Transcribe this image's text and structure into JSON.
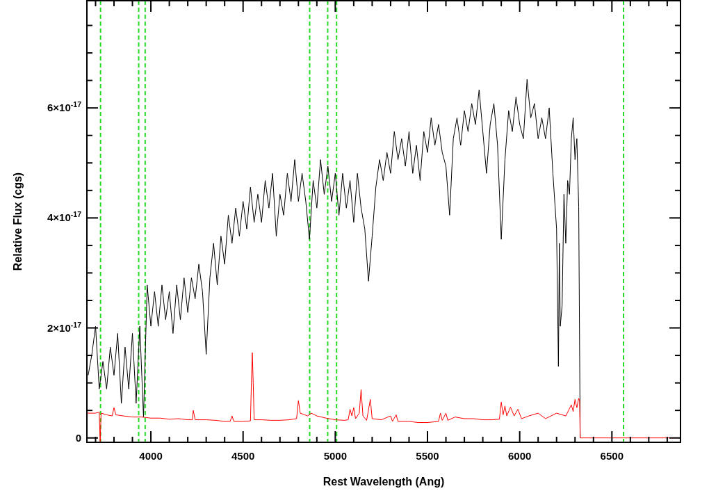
{
  "chart_data": {
    "type": "line",
    "xlabel": "Rest Wavelength (Ang)",
    "ylabel": "Relative Flux (cgs)",
    "xlim": [
      3653,
      6872
    ],
    "ylim": [
      -8e-19,
      7.95e-17
    ],
    "xticks": [
      {
        "value": 3700,
        "label": null
      },
      {
        "value": 3800,
        "label": null
      },
      {
        "value": 3900,
        "label": null
      },
      4000,
      {
        "value": 4100,
        "label": null
      },
      {
        "value": 4200,
        "label": null
      },
      {
        "value": 4300,
        "label": null
      },
      {
        "value": 4400,
        "label": null
      },
      4500,
      {
        "value": 4600,
        "label": null
      },
      {
        "value": 4700,
        "label": null
      },
      {
        "value": 4800,
        "label": null
      },
      {
        "value": 4900,
        "label": null
      },
      5000,
      {
        "value": 5100,
        "label": null
      },
      {
        "value": 5200,
        "label": null
      },
      {
        "value": 5300,
        "label": null
      },
      {
        "value": 5400,
        "label": null
      },
      5500,
      {
        "value": 5600,
        "label": null
      },
      {
        "value": 5700,
        "label": null
      },
      {
        "value": 5800,
        "label": null
      },
      {
        "value": 5900,
        "label": null
      },
      6000,
      {
        "value": 6100,
        "label": null
      },
      {
        "value": 6200,
        "label": null
      },
      {
        "value": 6300,
        "label": null
      },
      {
        "value": 6400,
        "label": null
      },
      6500,
      {
        "value": 6600,
        "label": null
      },
      {
        "value": 6700,
        "label": null
      },
      {
        "value": 6800,
        "label": null
      }
    ],
    "yticks": [
      0,
      {
        "value": 5e-18,
        "label": null
      },
      {
        "value": 1e-17,
        "label": null
      },
      {
        "value": 1.5e-17,
        "label": null
      },
      {
        "value": 2e-17,
        "label": "2×10$^{-17}$"
      },
      {
        "value": 2.5e-17,
        "label": null
      },
      {
        "value": 3e-17,
        "label": null
      },
      {
        "value": 3.5e-17,
        "label": null
      },
      {
        "value": 4e-17,
        "label": "4×10$^{-17}$"
      },
      {
        "value": 4.5e-17,
        "label": null
      },
      {
        "value": 5e-17,
        "label": null
      },
      {
        "value": 5.5e-17,
        "label": null
      },
      {
        "value": 6e-17,
        "label": "6×10$^{-17}$"
      },
      {
        "value": 6.5e-17,
        "label": null
      },
      {
        "value": 7e-17,
        "label": null
      },
      {
        "value": 7.5e-17,
        "label": null
      }
    ],
    "grid": false,
    "line_style": "solid",
    "ref_lines": [
      {
        "axis": "x",
        "value": 3727,
        "color": "#22dd22",
        "line_style": "dashed"
      },
      {
        "axis": "x",
        "value": 3934,
        "color": "#22dd22",
        "line_style": "dashed"
      },
      {
        "axis": "x",
        "value": 3969,
        "color": "#22dd22",
        "line_style": "dashed"
      },
      {
        "axis": "x",
        "value": 4861,
        "color": "#22dd22",
        "line_style": "dashed"
      },
      {
        "axis": "x",
        "value": 4959,
        "color": "#22dd22",
        "line_style": "dashed"
      },
      {
        "axis": "x",
        "value": 5007,
        "color": "#22dd22",
        "line_style": "dashed"
      },
      {
        "axis": "x",
        "value": 6563,
        "color": "#22dd22",
        "line_style": "dashed"
      }
    ],
    "series": [
      {
        "color": "#000000",
        "x": [
          3660,
          3680,
          3700,
          3720,
          3740,
          3760,
          3780,
          3800,
          3820,
          3840,
          3860,
          3880,
          3900,
          3920,
          3940,
          3960,
          3980,
          4000,
          4020,
          4040,
          4060,
          4080,
          4100,
          4120,
          4140,
          4160,
          4180,
          4200,
          4220,
          4240,
          4260,
          4280,
          4300,
          4320,
          4340,
          4360,
          4380,
          4400,
          4420,
          4440,
          4460,
          4480,
          4500,
          4520,
          4540,
          4560,
          4580,
          4600,
          4620,
          4640,
          4660,
          4680,
          4700,
          4720,
          4740,
          4760,
          4780,
          4800,
          4820,
          4840,
          4860,
          4880,
          4900,
          4920,
          4940,
          4960,
          4980,
          5000,
          5020,
          5040,
          5060,
          5080,
          5100,
          5120,
          5140,
          5160,
          5180,
          5200,
          5220,
          5240,
          5260,
          5280,
          5300,
          5320,
          5340,
          5360,
          5380,
          5400,
          5420,
          5440,
          5460,
          5480,
          5500,
          5520,
          5540,
          5560,
          5580,
          5600,
          5620,
          5640,
          5660,
          5680,
          5700,
          5720,
          5740,
          5760,
          5780,
          5800,
          5820,
          5840,
          5860,
          5880,
          5900,
          5920,
          5940,
          5960,
          5980,
          6000,
          6020,
          6040,
          6060,
          6080,
          6100,
          6120,
          6140,
          6160,
          6180,
          6200,
          6210,
          6215,
          6220,
          6230,
          6240,
          6250,
          6260,
          6270,
          6280,
          6290,
          6300,
          6310,
          6320,
          6328
        ],
        "values": [
          1.14e-17,
          1.52e-17,
          2.03e-17,
          8.9e-18,
          1.39e-17,
          8.9e-18,
          1.65e-17,
          1.14e-17,
          1.9e-17,
          6.3e-18,
          1.65e-17,
          8.9e-18,
          1.9e-17,
          6.3e-18,
          2.03e-17,
          3.8e-18,
          2.78e-17,
          2.03e-17,
          2.66e-17,
          2.03e-17,
          2.78e-17,
          2.15e-17,
          2.66e-17,
          1.9e-17,
          2.78e-17,
          2.15e-17,
          2.91e-17,
          2.28e-17,
          2.91e-17,
          2.53e-17,
          3.16e-17,
          2.66e-17,
          1.52e-17,
          2.91e-17,
          3.54e-17,
          2.78e-17,
          3.67e-17,
          3.16e-17,
          4.05e-17,
          3.54e-17,
          4.18e-17,
          3.67e-17,
          4.3e-17,
          3.8e-17,
          4.56e-17,
          3.92e-17,
          4.43e-17,
          3.92e-17,
          4.68e-17,
          4.18e-17,
          4.81e-17,
          3.67e-17,
          4.43e-17,
          4.05e-17,
          4.81e-17,
          4.3e-17,
          5.06e-17,
          4.3e-17,
          4.81e-17,
          4.3e-17,
          3.61e-17,
          4.68e-17,
          4.18e-17,
          5.06e-17,
          4.43e-17,
          4.94e-17,
          4.3e-17,
          4.81e-17,
          4.05e-17,
          4.81e-17,
          4.18e-17,
          4.68e-17,
          3.92e-17,
          4.81e-17,
          4.18e-17,
          3.8e-17,
          2.85e-17,
          3.67e-17,
          4.56e-17,
          5.06e-17,
          4.68e-17,
          5.19e-17,
          4.81e-17,
          5.57e-17,
          5.06e-17,
          5.44e-17,
          4.94e-17,
          5.57e-17,
          4.81e-17,
          5.32e-17,
          4.68e-17,
          5.57e-17,
          5.19e-17,
          5.82e-17,
          5.32e-17,
          5.7e-17,
          5.19e-17,
          4.94e-17,
          4.05e-17,
          5.44e-17,
          5.82e-17,
          5.32e-17,
          5.95e-17,
          5.57e-17,
          6.08e-17,
          5.7e-17,
          6.33e-17,
          5.57e-17,
          4.81e-17,
          5.7e-17,
          6.08e-17,
          5.32e-17,
          3.61e-17,
          5.06e-17,
          5.95e-17,
          5.57e-17,
          6.2e-17,
          5.7e-17,
          5.44e-17,
          6.52e-17,
          5.82e-17,
          6.08e-17,
          5.44e-17,
          5.82e-17,
          5.44e-17,
          6e-17,
          4.81e-17,
          3.8e-17,
          1.3e-17,
          3.54e-17,
          2.03e-17,
          2.41e-17,
          4.43e-17,
          3.54e-17,
          4.68e-17,
          4.43e-17,
          5.44e-17,
          5.82e-17,
          5.06e-17,
          5.44e-17,
          4.2e-17,
          0
        ]
      },
      {
        "color": "#ff0000",
        "x": [
          3653,
          3700,
          3720,
          3725,
          3730,
          3760,
          3790,
          3800,
          3810,
          3850,
          3900,
          3950,
          4000,
          4050,
          4100,
          4150,
          4200,
          4225,
          4230,
          4240,
          4300,
          4350,
          4400,
          4430,
          4440,
          4450,
          4500,
          4540,
          4545,
          4550,
          4555,
          4560,
          4600,
          4650,
          4700,
          4750,
          4790,
          4800,
          4810,
          4850,
          4870,
          4900,
          4950,
          5000,
          5050,
          5070,
          5080,
          5090,
          5100,
          5110,
          5130,
          5140,
          5150,
          5170,
          5190,
          5200,
          5250,
          5300,
          5310,
          5330,
          5340,
          5400,
          5450,
          5500,
          5560,
          5570,
          5580,
          5600,
          5610,
          5650,
          5700,
          5750,
          5800,
          5850,
          5890,
          5900,
          5910,
          5920,
          5930,
          5950,
          5970,
          5990,
          6010,
          6050,
          6100,
          6140,
          6200,
          6250,
          6280,
          6290,
          6300,
          6310,
          6320,
          6325,
          6328,
          6872
        ],
        "values": [
          4.5e-18,
          4.5e-18,
          4.7e-18,
          -8e-19,
          4.5e-18,
          4.2e-18,
          4e-18,
          5.5e-18,
          4.2e-18,
          4e-18,
          3.8e-18,
          3.8e-18,
          3.6e-18,
          3.6e-18,
          3.4e-18,
          3.5e-18,
          3.3e-18,
          3.3e-18,
          5e-18,
          3.3e-18,
          3.3e-18,
          3.2e-18,
          3e-18,
          3e-18,
          4e-18,
          3e-18,
          3e-18,
          3.1e-18,
          1e-17,
          1.55e-17,
          1e-17,
          3.3e-18,
          3.3e-18,
          3.2e-18,
          3.2e-18,
          3.3e-18,
          3.5e-18,
          6.8e-18,
          4.5e-18,
          4e-18,
          4.5e-18,
          4e-18,
          3.6e-18,
          3.3e-18,
          3.2e-18,
          3.3e-18,
          5.2e-18,
          4e-18,
          5.5e-18,
          3.5e-18,
          4.5e-18,
          8.8e-18,
          4e-18,
          3.2e-18,
          7e-18,
          3.5e-18,
          3.3e-18,
          4e-18,
          3e-18,
          4.2e-18,
          3e-18,
          3e-18,
          2.8e-18,
          2.8e-18,
          3e-18,
          4.5e-18,
          3.2e-18,
          4.5e-18,
          3.2e-18,
          3.8e-18,
          3.5e-18,
          3.5e-18,
          3.3e-18,
          3.3e-18,
          3.4e-18,
          6.5e-18,
          4.2e-18,
          5.8e-18,
          4e-18,
          5.6e-18,
          4e-18,
          5.2e-18,
          3.5e-18,
          4e-18,
          4.5e-18,
          3.5e-18,
          4.5e-18,
          4e-18,
          6e-18,
          4.8e-18,
          7e-18,
          5.5e-18,
          7.2e-18,
          6.8e-18,
          0,
          0
        ]
      }
    ]
  }
}
